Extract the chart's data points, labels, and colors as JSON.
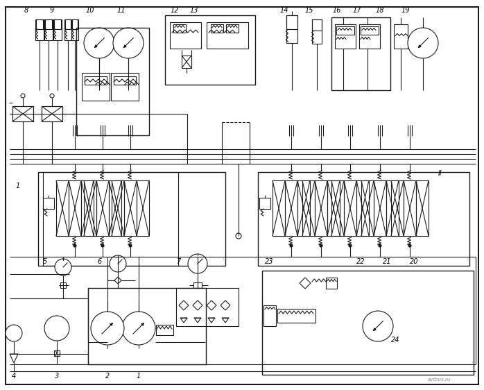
{
  "background_color": "#ffffff",
  "line_color": "#1a1a1a",
  "line_width": 0.8,
  "fig_width": 6.98,
  "fig_height": 5.62,
  "dpi": 100
}
